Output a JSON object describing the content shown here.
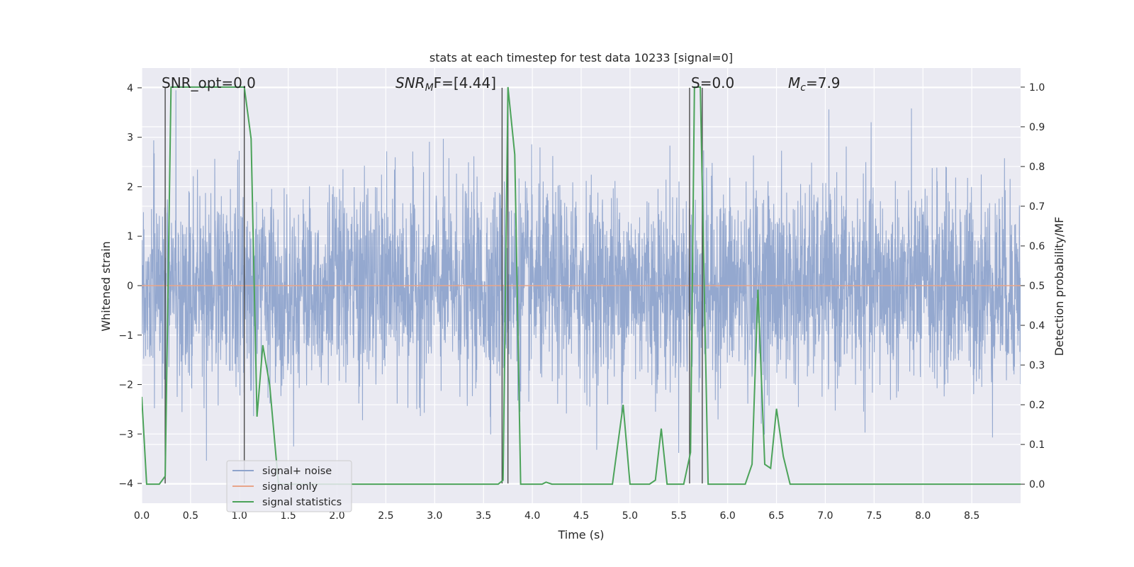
{
  "chart_data": {
    "type": "line",
    "title": "stats at each timestep for test data 10233 [signal=0]",
    "xlabel": "Time (s)",
    "ylabel": "Whitened strain",
    "ylabel_right": "Detection probability/MF",
    "xlim": [
      0.0,
      9.0
    ],
    "ylim": [
      -4.4,
      4.4
    ],
    "ylim_right": [
      -0.048,
      1.048
    ],
    "xticks": [
      "0.0",
      "0.5",
      "1.0",
      "1.5",
      "2.0",
      "2.5",
      "3.0",
      "3.5",
      "4.0",
      "4.5",
      "5.0",
      "5.5",
      "6.0",
      "6.5",
      "7.0",
      "7.5",
      "8.0",
      "8.5"
    ],
    "yticks_left": [
      "4",
      "3",
      "2",
      "1",
      "0",
      "−1",
      "−2",
      "−3",
      "−4"
    ],
    "yticks_right": [
      "1.0",
      "0.9",
      "0.8",
      "0.7",
      "0.6",
      "0.5",
      "0.4",
      "0.3",
      "0.2",
      "0.1",
      "0.0"
    ],
    "grid": true,
    "legend_position": "lower-left",
    "annotations": {
      "snr_opt": "SNR_opt=0.0",
      "snr_mf": "SNRMF=[4.44]",
      "snr_mf_prefix": "SNR",
      "snr_mf_sub": "M",
      "snr_mf_suffix": "F=[4.44]",
      "s": "S=0.0",
      "mc": "Mc=7.9",
      "mc_prefix": "M",
      "mc_sub": "c",
      "mc_suffix": "=7.9"
    },
    "series": [
      {
        "name": "signal+ noise",
        "color": "#8fa4cc",
        "axis": "left",
        "description": "whitened noise, approx. Gaussian, amplitude within ±4",
        "envelope": {
          "typical_min": -1.6,
          "typical_max": 1.6
        }
      },
      {
        "name": "signal only",
        "color": "#e8a58a",
        "axis": "left",
        "x": [
          0.0,
          9.0
        ],
        "y": [
          0.0,
          0.0
        ]
      },
      {
        "name": "signal statistics",
        "color": "#4ca35a",
        "axis": "right",
        "x": [
          0.0,
          0.05,
          0.18,
          0.24,
          0.3,
          1.05,
          1.12,
          1.18,
          1.24,
          1.31,
          1.4,
          3.65,
          3.7,
          3.75,
          3.82,
          3.88,
          4.1,
          4.14,
          4.2,
          4.82,
          4.93,
          5.0,
          5.2,
          5.26,
          5.32,
          5.38,
          5.55,
          5.62,
          5.66,
          5.72,
          5.8,
          6.18,
          6.25,
          6.31,
          6.38,
          6.44,
          6.5,
          6.57,
          6.64,
          9.0
        ],
        "y": [
          0.22,
          0.0,
          0.0,
          0.02,
          1.0,
          1.0,
          0.87,
          0.17,
          0.35,
          0.25,
          0.0,
          0.0,
          0.01,
          1.0,
          0.83,
          0.0,
          0.0,
          0.005,
          0.0,
          0.0,
          0.2,
          0.0,
          0.0,
          0.01,
          0.14,
          0.0,
          0.0,
          0.08,
          1.0,
          1.0,
          0.0,
          0.0,
          0.05,
          0.49,
          0.05,
          0.04,
          0.19,
          0.07,
          0.0,
          0.0
        ]
      }
    ],
    "vertical_lines": [
      {
        "x": 0.24,
        "axis_range": [
          -4,
          4
        ]
      },
      {
        "x": 1.05,
        "axis_range": [
          -4,
          4
        ]
      },
      {
        "x": 3.69,
        "axis_range": [
          -4,
          4
        ]
      },
      {
        "x": 3.75,
        "axis_range": [
          -4,
          4
        ]
      },
      {
        "x": 5.61,
        "axis_range": [
          -4,
          4
        ]
      },
      {
        "x": 5.74,
        "axis_range": [
          -4,
          4
        ]
      }
    ]
  }
}
